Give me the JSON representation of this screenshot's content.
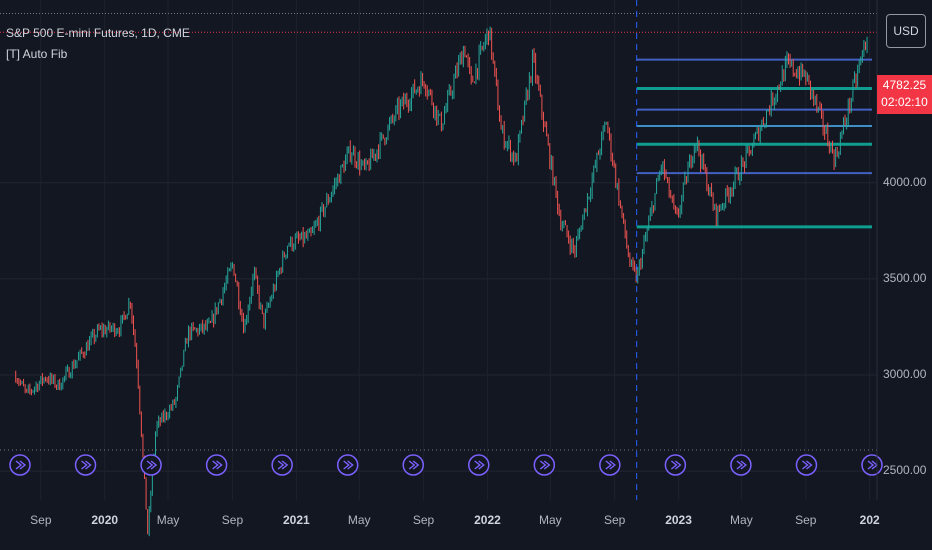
{
  "header": {
    "symbol_title": "S&P 500 E-mini Futures, 1D, CME",
    "indicator": "[T] Auto Fib",
    "currency": "USD"
  },
  "price_tag": {
    "price": "4782.25",
    "countdown": "02:02:10",
    "color": "#f23645"
  },
  "colors": {
    "background": "#131722",
    "up_candle": "#26a69a",
    "down_candle": "#ef5350",
    "fib_blue": "#4360c5",
    "fib_teal": "#0f9d8f",
    "fib_light_blue": "#3d8fc5",
    "event_icon": "#7b61ff"
  },
  "chart_data": {
    "type": "candlestick",
    "title": "S&P 500 E-mini Futures, 1D, CME",
    "y_tick_labels": [
      "4000.00",
      "3500.00",
      "3000.00",
      "2500.00"
    ],
    "y_ticks": [
      4000,
      3500,
      3000,
      2500
    ],
    "ylim": [
      2350,
      4950
    ],
    "x_tick_labels": [
      {
        "label": "Sep",
        "bold": false
      },
      {
        "label": "2020",
        "bold": true
      },
      {
        "label": "May",
        "bold": false
      },
      {
        "label": "Sep",
        "bold": false
      },
      {
        "label": "2021",
        "bold": true
      },
      {
        "label": "May",
        "bold": false
      },
      {
        "label": "Sep",
        "bold": false
      },
      {
        "label": "2022",
        "bold": true
      },
      {
        "label": "May",
        "bold": false
      },
      {
        "label": "Sep",
        "bold": false
      },
      {
        "label": "2023",
        "bold": true
      },
      {
        "label": "May",
        "bold": false
      },
      {
        "label": "Sep",
        "bold": false
      },
      {
        "label": "202",
        "bold": true
      }
    ],
    "x_tick_dates": [
      "2019-09-01",
      "2020-01-01",
      "2020-05-01",
      "2020-09-01",
      "2021-01-01",
      "2021-05-01",
      "2021-09-01",
      "2022-01-01",
      "2022-05-01",
      "2022-09-01",
      "2023-01-01",
      "2023-05-01",
      "2023-09-01",
      "2024-01-01"
    ],
    "price_path": [
      [
        "2019-07-15",
        3000
      ],
      [
        "2019-08-05",
        2900
      ],
      [
        "2019-09-10",
        2990
      ],
      [
        "2019-10-05",
        2945
      ],
      [
        "2019-11-15",
        3100
      ],
      [
        "2019-12-20",
        3230
      ],
      [
        "2020-01-31",
        3250
      ],
      [
        "2020-02-19",
        3390
      ],
      [
        "2020-03-03",
        3050
      ],
      [
        "2020-03-23",
        2180
      ],
      [
        "2020-04-08",
        2730
      ],
      [
        "2020-05-15",
        2860
      ],
      [
        "2020-06-08",
        3220
      ],
      [
        "2020-07-20",
        3250
      ],
      [
        "2020-09-02",
        3580
      ],
      [
        "2020-09-23",
        3240
      ],
      [
        "2020-10-12",
        3530
      ],
      [
        "2020-10-30",
        3270
      ],
      [
        "2020-12-15",
        3680
      ],
      [
        "2021-01-29",
        3720
      ],
      [
        "2021-04-15",
        4170
      ],
      [
        "2021-05-12",
        4060
      ],
      [
        "2021-07-15",
        4380
      ],
      [
        "2021-09-02",
        4540
      ],
      [
        "2021-10-04",
        4300
      ],
      [
        "2021-11-18",
        4710
      ],
      [
        "2021-12-01",
        4510
      ],
      [
        "2022-01-04",
        4800
      ],
      [
        "2022-01-27",
        4270
      ],
      [
        "2022-02-24",
        4110
      ],
      [
        "2022-03-29",
        4640
      ],
      [
        "2022-05-20",
        3810
      ],
      [
        "2022-06-16",
        3640
      ],
      [
        "2022-08-16",
        4320
      ],
      [
        "2022-09-30",
        3575
      ],
      [
        "2022-10-13",
        3500
      ],
      [
        "2022-11-30",
        4100
      ],
      [
        "2022-12-28",
        3800
      ],
      [
        "2023-02-02",
        4230
      ],
      [
        "2023-03-13",
        3830
      ],
      [
        "2023-05-15",
        4150
      ],
      [
        "2023-07-27",
        4610
      ],
      [
        "2023-09-01",
        4550
      ],
      [
        "2023-10-27",
        4120
      ],
      [
        "2023-12-29",
        4782
      ]
    ],
    "vertical_marker_date": "2022-10-13",
    "event_icon_count": 14,
    "fib_levels": [
      {
        "price": 4640,
        "color": "blue"
      },
      {
        "price": 4490,
        "color": "teal"
      },
      {
        "price": 4380,
        "color": "blue"
      },
      {
        "price": 4295,
        "color": "light_blue"
      },
      {
        "price": 4200,
        "color": "teal"
      },
      {
        "price": 4050,
        "color": "blue"
      },
      {
        "price": 3770,
        "color": "teal"
      }
    ],
    "fib_start_date": "2022-10-13",
    "high_line": 4880,
    "current_line": 4782
  }
}
